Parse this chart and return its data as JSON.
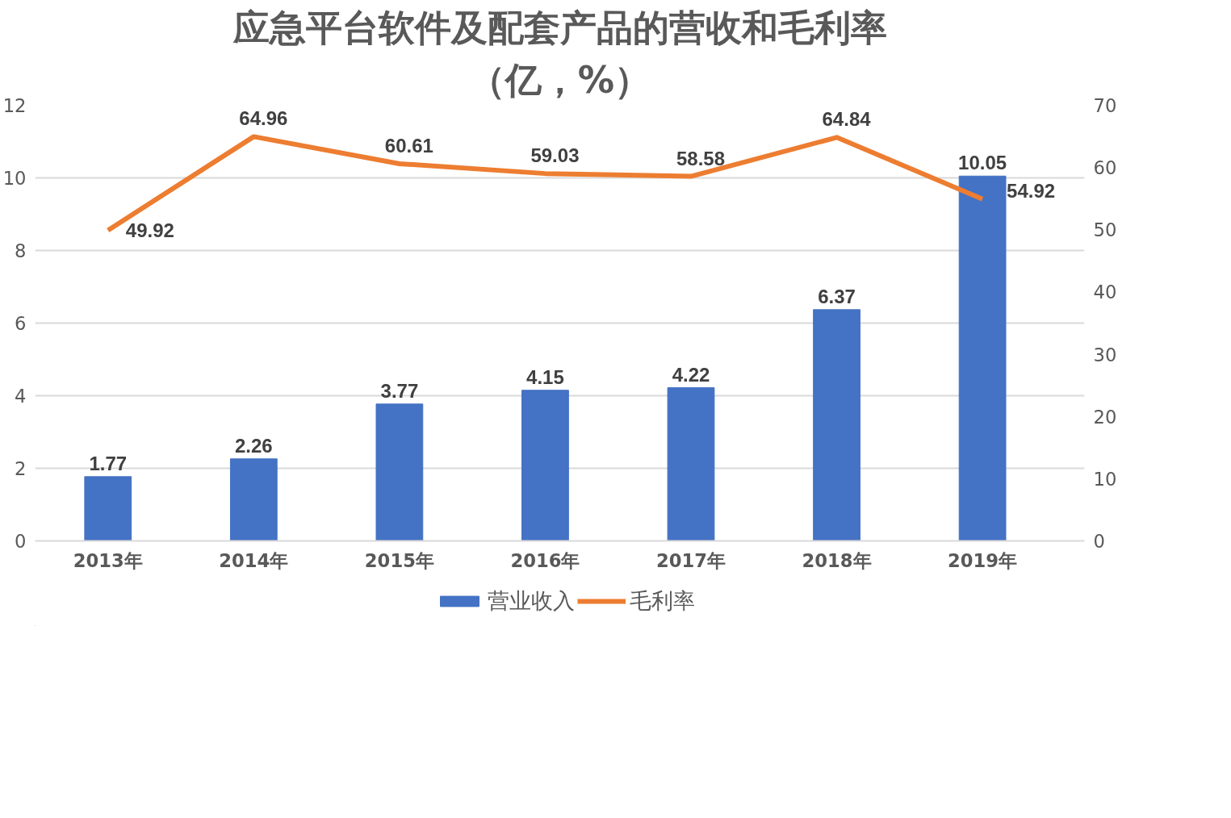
{
  "chart_data": {
    "type": "bar",
    "title": "应急平台软件及配套产品的营收和毛利率",
    "subtitle": "（亿，%）",
    "categories": [
      "2013年",
      "2014年",
      "2015年",
      "2016年",
      "2017年",
      "2018年",
      "2019年"
    ],
    "series": [
      {
        "name": "营业收入",
        "color": "#4472c4",
        "values": [
          1.77,
          2.26,
          3.77,
          4.15,
          4.22,
          6.37,
          10.05
        ]
      },
      {
        "name": "毛利率",
        "type": "line",
        "axis": "y2",
        "color": "#ed7d31",
        "values": [
          49.92,
          64.96,
          60.61,
          59.03,
          58.58,
          64.84,
          54.92
        ]
      }
    ],
    "ylim": [
      0,
      12
    ],
    "yticks": [
      0,
      2,
      4,
      6,
      8,
      10,
      12
    ],
    "y2lim": [
      0,
      70
    ],
    "y2ticks": [
      0,
      10,
      20,
      30,
      40,
      50,
      60,
      70
    ],
    "grid": "y",
    "legend": "bottom",
    "data_labels": true,
    "marker": "none",
    "line_style": "solid"
  }
}
